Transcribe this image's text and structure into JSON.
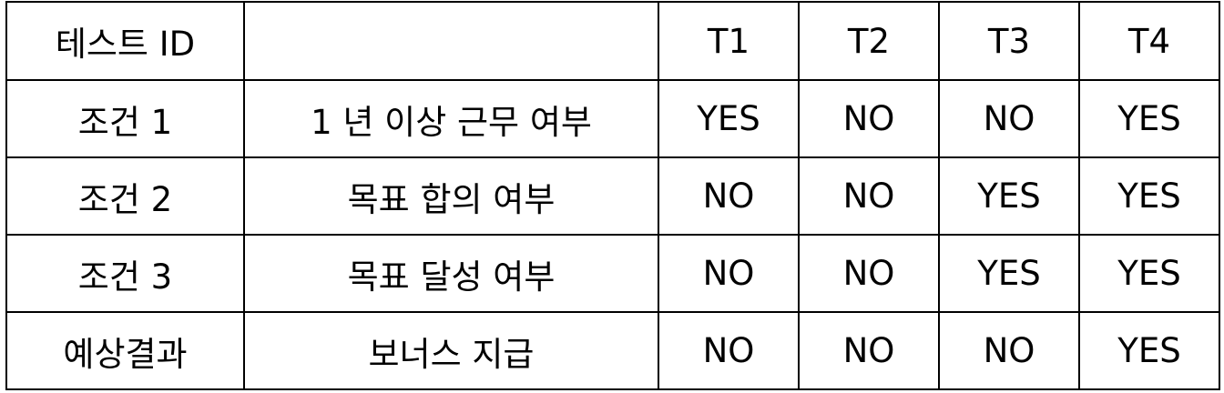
{
  "table": {
    "header": [
      "테스트 ID",
      "",
      "T1",
      "T2",
      "T3",
      "T4"
    ],
    "rows": [
      [
        "조건 1",
        "1 년 이상 근무 여부",
        "YES",
        "NO",
        "NO",
        "YES"
      ],
      [
        "조건 2",
        "목표 합의 여부",
        "NO",
        "NO",
        "YES",
        "YES"
      ],
      [
        "조건 3",
        "목표 달성 여부",
        "NO",
        "NO",
        "YES",
        "YES"
      ],
      [
        "예상결과",
        "보너스 지급",
        "NO",
        "NO",
        "NO",
        "YES"
      ]
    ]
  }
}
